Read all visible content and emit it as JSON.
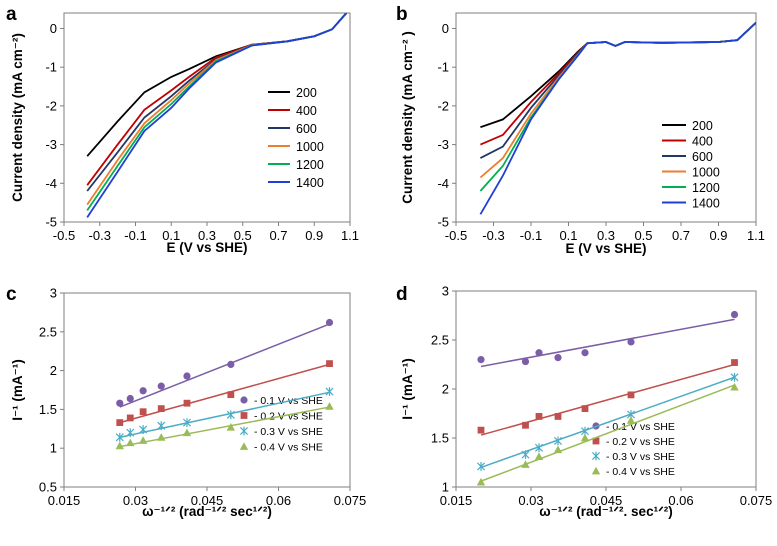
{
  "chart_data": [
    {
      "panel": "a",
      "type": "line",
      "title": "",
      "xlabel": "E (V vs SHE)",
      "ylabel": "Current density (mA cm⁻²)",
      "xlim": [
        -0.5,
        1.1
      ],
      "ylim": [
        -5,
        0.4
      ],
      "xticks": [
        "-0.5",
        "-0.3",
        "-0.1",
        "0.1",
        "0.3",
        "0.5",
        "0.7",
        "0.9",
        "1.1"
      ],
      "yticks": [
        "0",
        "-1",
        "-2",
        "-3",
        "-4",
        "-5"
      ],
      "grid": false,
      "legend": "right",
      "series": [
        {
          "name": "200",
          "color": "#000000",
          "points": [
            [
              -0.37,
              -3.3
            ],
            [
              -0.2,
              -2.4
            ],
            [
              -0.05,
              -1.65
            ],
            [
              0.1,
              -1.25
            ],
            [
              0.2,
              -1.05
            ],
            [
              0.35,
              -0.72
            ],
            [
              0.55,
              -0.42
            ],
            [
              0.75,
              -0.33
            ],
            [
              0.9,
              -0.2
            ],
            [
              1.0,
              -0.02
            ],
            [
              1.08,
              0.4
            ]
          ]
        },
        {
          "name": "400",
          "color": "#c00000",
          "points": [
            [
              -0.37,
              -4.05
            ],
            [
              -0.2,
              -3.0
            ],
            [
              -0.05,
              -2.1
            ],
            [
              0.1,
              -1.6
            ],
            [
              0.2,
              -1.25
            ],
            [
              0.35,
              -0.75
            ],
            [
              0.55,
              -0.42
            ],
            [
              0.75,
              -0.33
            ],
            [
              0.9,
              -0.2
            ],
            [
              1.0,
              -0.02
            ],
            [
              1.08,
              0.4
            ]
          ]
        },
        {
          "name": "600",
          "color": "#1f3864",
          "points": [
            [
              -0.37,
              -4.2
            ],
            [
              -0.2,
              -3.2
            ],
            [
              -0.05,
              -2.3
            ],
            [
              0.1,
              -1.75
            ],
            [
              0.2,
              -1.35
            ],
            [
              0.35,
              -0.8
            ],
            [
              0.55,
              -0.43
            ],
            [
              0.75,
              -0.33
            ],
            [
              0.9,
              -0.2
            ],
            [
              1.0,
              -0.02
            ],
            [
              1.08,
              0.4
            ]
          ]
        },
        {
          "name": "1000",
          "color": "#ed7d31",
          "points": [
            [
              -0.37,
              -4.55
            ],
            [
              -0.2,
              -3.4
            ],
            [
              -0.05,
              -2.45
            ],
            [
              0.1,
              -1.85
            ],
            [
              0.2,
              -1.42
            ],
            [
              0.35,
              -0.82
            ],
            [
              0.55,
              -0.43
            ],
            [
              0.75,
              -0.33
            ],
            [
              0.9,
              -0.2
            ],
            [
              1.0,
              -0.02
            ],
            [
              1.08,
              0.4
            ]
          ]
        },
        {
          "name": "1200",
          "color": "#00b050",
          "points": [
            [
              -0.37,
              -4.7
            ],
            [
              -0.2,
              -3.55
            ],
            [
              -0.05,
              -2.55
            ],
            [
              0.1,
              -1.95
            ],
            [
              0.2,
              -1.5
            ],
            [
              0.35,
              -0.85
            ],
            [
              0.55,
              -0.44
            ],
            [
              0.75,
              -0.33
            ],
            [
              0.9,
              -0.2
            ],
            [
              1.0,
              -0.02
            ],
            [
              1.08,
              0.4
            ]
          ]
        },
        {
          "name": "1400",
          "color": "#1f3fd6",
          "points": [
            [
              -0.37,
              -4.88
            ],
            [
              -0.2,
              -3.7
            ],
            [
              -0.05,
              -2.65
            ],
            [
              0.1,
              -2.05
            ],
            [
              0.2,
              -1.55
            ],
            [
              0.35,
              -0.88
            ],
            [
              0.55,
              -0.44
            ],
            [
              0.75,
              -0.33
            ],
            [
              0.9,
              -0.2
            ],
            [
              1.0,
              -0.02
            ],
            [
              1.08,
              0.4
            ]
          ]
        }
      ]
    },
    {
      "panel": "b",
      "type": "line",
      "title": "",
      "xlabel": "E (V vs SHE)",
      "ylabel": "Current density (mA cm⁻² )",
      "xlim": [
        -0.5,
        1.1
      ],
      "ylim": [
        -5,
        0.4
      ],
      "xticks": [
        "-0.5",
        "-0.3",
        "-0.1",
        "0.1",
        "0.3",
        "0.5",
        "0.7",
        "0.9",
        "1.1"
      ],
      "yticks": [
        "0",
        "-1",
        "-2",
        "-3",
        "-4",
        "-5"
      ],
      "grid": false,
      "legend": "left",
      "series": [
        {
          "name": "200",
          "color": "#000000",
          "points": [
            [
              -0.37,
              -2.55
            ],
            [
              -0.25,
              -2.35
            ],
            [
              -0.1,
              -1.75
            ],
            [
              0.05,
              -1.1
            ],
            [
              0.15,
              -0.6
            ],
            [
              0.2,
              -0.38
            ],
            [
              0.3,
              -0.35
            ],
            [
              0.35,
              -0.45
            ],
            [
              0.4,
              -0.35
            ],
            [
              0.6,
              -0.37
            ],
            [
              0.9,
              -0.35
            ],
            [
              1.0,
              -0.3
            ],
            [
              1.1,
              0.15
            ]
          ]
        },
        {
          "name": "400",
          "color": "#c00000",
          "points": [
            [
              -0.37,
              -3.0
            ],
            [
              -0.25,
              -2.75
            ],
            [
              -0.1,
              -1.9
            ],
            [
              0.05,
              -1.15
            ],
            [
              0.15,
              -0.62
            ],
            [
              0.2,
              -0.38
            ],
            [
              0.3,
              -0.35
            ],
            [
              0.35,
              -0.45
            ],
            [
              0.4,
              -0.35
            ],
            [
              0.6,
              -0.37
            ],
            [
              0.9,
              -0.35
            ],
            [
              1.0,
              -0.3
            ],
            [
              1.1,
              0.15
            ]
          ]
        },
        {
          "name": "600",
          "color": "#1f3864",
          "points": [
            [
              -0.37,
              -3.35
            ],
            [
              -0.25,
              -3.05
            ],
            [
              -0.1,
              -2.05
            ],
            [
              0.05,
              -1.2
            ],
            [
              0.15,
              -0.65
            ],
            [
              0.2,
              -0.38
            ],
            [
              0.3,
              -0.35
            ],
            [
              0.35,
              -0.45
            ],
            [
              0.4,
              -0.35
            ],
            [
              0.6,
              -0.37
            ],
            [
              0.9,
              -0.35
            ],
            [
              1.0,
              -0.3
            ],
            [
              1.1,
              0.15
            ]
          ]
        },
        {
          "name": "1000",
          "color": "#ed7d31",
          "points": [
            [
              -0.37,
              -3.85
            ],
            [
              -0.25,
              -3.35
            ],
            [
              -0.1,
              -2.2
            ],
            [
              0.05,
              -1.25
            ],
            [
              0.15,
              -0.68
            ],
            [
              0.2,
              -0.38
            ],
            [
              0.3,
              -0.35
            ],
            [
              0.35,
              -0.45
            ],
            [
              0.4,
              -0.35
            ],
            [
              0.6,
              -0.37
            ],
            [
              0.9,
              -0.35
            ],
            [
              1.0,
              -0.3
            ],
            [
              1.1,
              0.15
            ]
          ]
        },
        {
          "name": "1200",
          "color": "#00b050",
          "points": [
            [
              -0.37,
              -4.2
            ],
            [
              -0.25,
              -3.55
            ],
            [
              -0.1,
              -2.3
            ],
            [
              0.05,
              -1.3
            ],
            [
              0.15,
              -0.7
            ],
            [
              0.2,
              -0.38
            ],
            [
              0.3,
              -0.35
            ],
            [
              0.35,
              -0.45
            ],
            [
              0.4,
              -0.35
            ],
            [
              0.6,
              -0.37
            ],
            [
              0.9,
              -0.35
            ],
            [
              1.0,
              -0.3
            ],
            [
              1.1,
              0.15
            ]
          ]
        },
        {
          "name": "1400",
          "color": "#1f3fd6",
          "points": [
            [
              -0.37,
              -4.8
            ],
            [
              -0.25,
              -3.8
            ],
            [
              -0.1,
              -2.35
            ],
            [
              0.05,
              -1.3
            ],
            [
              0.15,
              -0.7
            ],
            [
              0.2,
              -0.38
            ],
            [
              0.3,
              -0.35
            ],
            [
              0.35,
              -0.45
            ],
            [
              0.4,
              -0.35
            ],
            [
              0.6,
              -0.37
            ],
            [
              0.9,
              -0.35
            ],
            [
              1.0,
              -0.3
            ],
            [
              1.1,
              0.15
            ]
          ]
        }
      ]
    },
    {
      "panel": "c",
      "type": "scatter",
      "title": "",
      "xlabel": "ω⁻¹ᐟ² (rad⁻¹ᐟ² sec¹ᐟ²)",
      "ylabel": "I⁻¹ (mA⁻¹)",
      "xlim": [
        0.015,
        0.075
      ],
      "ylim": [
        0.5,
        3
      ],
      "xticks": [
        "0.015",
        "0.03",
        "0.045",
        "0.06",
        "0.075"
      ],
      "yticks": [
        "0.5",
        "1",
        "1.5",
        "2",
        "2.5",
        "3"
      ],
      "grid": false,
      "legend": "bottom-right",
      "series": [
        {
          "name": "- 0.1 V vs SHE",
          "color": "#7b5ea7",
          "marker": "circle",
          "x": [
            0.0267,
            0.0289,
            0.0316,
            0.0354,
            0.0408,
            0.05,
            0.0707
          ],
          "y": [
            1.58,
            1.64,
            1.74,
            1.8,
            1.93,
            2.08,
            2.62
          ],
          "fit": [
            [
              0.0267,
              1.53
            ],
            [
              0.0707,
              2.6
            ]
          ]
        },
        {
          "name": "- 0.2 V vs SHE",
          "color": "#c0504d",
          "marker": "square",
          "x": [
            0.0267,
            0.0289,
            0.0316,
            0.0354,
            0.0408,
            0.05,
            0.0707
          ],
          "y": [
            1.33,
            1.39,
            1.47,
            1.51,
            1.58,
            1.69,
            2.09
          ],
          "fit": [
            [
              0.0267,
              1.33
            ],
            [
              0.0707,
              2.08
            ]
          ]
        },
        {
          "name": "- 0.3 V vs SHE",
          "color": "#4bacc6",
          "marker": "asterisk",
          "x": [
            0.0267,
            0.0289,
            0.0316,
            0.0354,
            0.0408,
            0.05,
            0.0707
          ],
          "y": [
            1.14,
            1.2,
            1.24,
            1.29,
            1.33,
            1.43,
            1.73
          ],
          "fit": [
            [
              0.0267,
              1.14
            ],
            [
              0.0707,
              1.72
            ]
          ]
        },
        {
          "name": "- 0.4 V vs SHE",
          "color": "#9bbb59",
          "marker": "triangle",
          "x": [
            0.0267,
            0.0289,
            0.0316,
            0.0354,
            0.0408,
            0.05,
            0.0707
          ],
          "y": [
            1.03,
            1.07,
            1.1,
            1.14,
            1.2,
            1.27,
            1.54
          ],
          "fit": [
            [
              0.0267,
              1.02
            ],
            [
              0.0707,
              1.53
            ]
          ]
        }
      ]
    },
    {
      "panel": "d",
      "type": "scatter",
      "title": "",
      "xlabel": "ω⁻¹ᐟ² (rad⁻¹ᐟ². sec¹ᐟ²)",
      "ylabel": "I⁻¹ (mA⁻¹)",
      "xlim": [
        0.015,
        0.075
      ],
      "ylim": [
        1,
        3
      ],
      "xticks": [
        "0.015",
        "0.03",
        "0.045",
        "0.06",
        "0.075"
      ],
      "yticks": [
        "1",
        "1.5",
        "2",
        "2.5",
        "3"
      ],
      "grid": false,
      "legend": "bottom-left",
      "series": [
        {
          "name": "- 0.1 V vs SHE",
          "color": "#7b5ea7",
          "marker": "circle",
          "x": [
            0.02,
            0.0289,
            0.0316,
            0.0354,
            0.0408,
            0.05,
            0.0707
          ],
          "y": [
            2.3,
            2.28,
            2.37,
            2.32,
            2.37,
            2.48,
            2.76
          ],
          "fit": [
            [
              0.02,
              2.23
            ],
            [
              0.0707,
              2.71
            ]
          ]
        },
        {
          "name": "- 0.2 V vs SHE",
          "color": "#c0504d",
          "marker": "square",
          "x": [
            0.02,
            0.0289,
            0.0316,
            0.0354,
            0.0408,
            0.05,
            0.0707
          ],
          "y": [
            1.58,
            1.63,
            1.72,
            1.72,
            1.8,
            1.94,
            2.27
          ],
          "fit": [
            [
              0.02,
              1.53
            ],
            [
              0.0707,
              2.25
            ]
          ]
        },
        {
          "name": "- 0.3 V vs SHE",
          "color": "#4bacc6",
          "marker": "asterisk",
          "x": [
            0.02,
            0.0289,
            0.0316,
            0.0354,
            0.0408,
            0.05,
            0.0707
          ],
          "y": [
            1.21,
            1.33,
            1.4,
            1.47,
            1.57,
            1.74,
            2.12
          ],
          "fit": [
            [
              0.02,
              1.2
            ],
            [
              0.0707,
              2.12
            ]
          ]
        },
        {
          "name": "- 0.4 V vs SHE",
          "color": "#9bbb59",
          "marker": "triangle",
          "x": [
            0.02,
            0.0289,
            0.0316,
            0.0354,
            0.0408,
            0.05,
            0.0707
          ],
          "y": [
            1.05,
            1.23,
            1.31,
            1.38,
            1.5,
            1.68,
            2.02
          ],
          "fit": [
            [
              0.02,
              1.06
            ],
            [
              0.0707,
              2.04
            ]
          ]
        }
      ]
    }
  ]
}
